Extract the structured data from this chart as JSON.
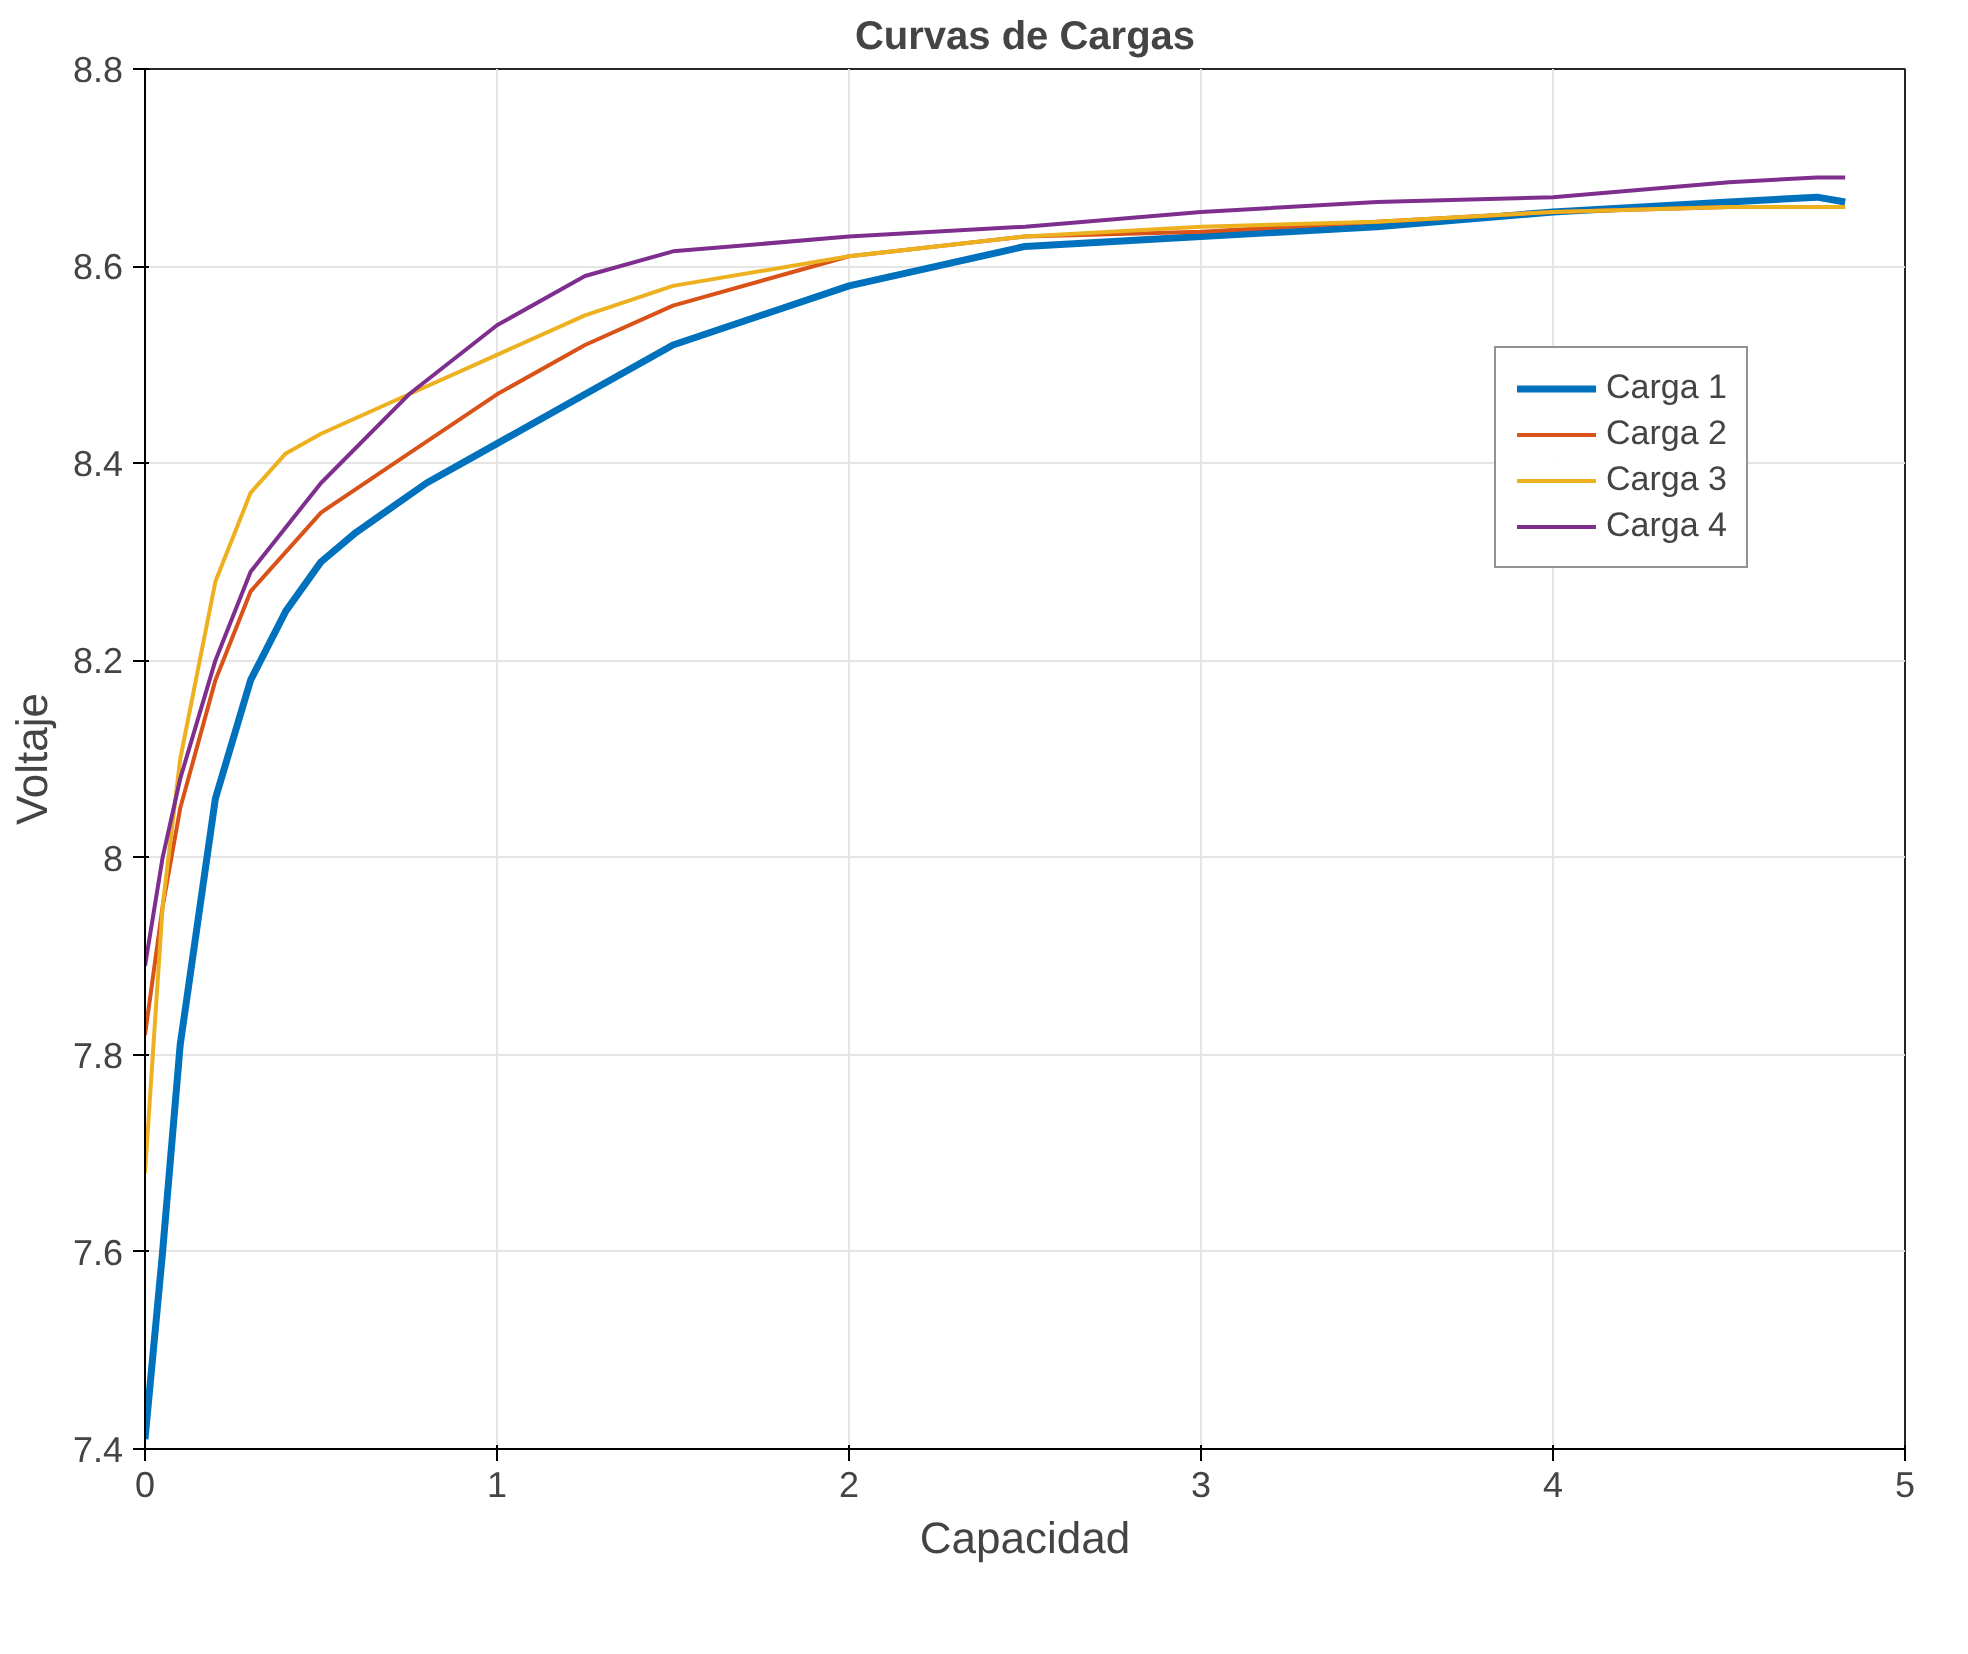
{
  "chart_data": {
    "type": "line",
    "title": "Curvas de Cargas",
    "xlabel": "Capacidad",
    "ylabel": "Voltaje",
    "xlim": [
      0,
      5
    ],
    "ylim": [
      7.4,
      8.8
    ],
    "xticks": [
      0,
      1,
      2,
      3,
      4,
      5
    ],
    "yticks": [
      7.4,
      7.6,
      7.8,
      8,
      8.2,
      8.4,
      8.6,
      8.8
    ],
    "grid": true,
    "legend": "top right",
    "line_style": "solid",
    "series": [
      {
        "name": "Carga 1",
        "color": "#0072bd",
        "x": [
          0,
          0.05,
          0.1,
          0.2,
          0.3,
          0.4,
          0.5,
          0.6,
          0.8,
          1,
          1.25,
          1.5,
          2,
          2.5,
          3,
          3.5,
          4,
          4.5,
          4.75,
          4.83
        ],
        "values": [
          7.41,
          7.6,
          7.81,
          8.06,
          8.18,
          8.25,
          8.3,
          8.33,
          8.38,
          8.42,
          8.47,
          8.52,
          8.58,
          8.62,
          8.63,
          8.64,
          8.655,
          8.665,
          8.67,
          8.665
        ]
      },
      {
        "name": "Carga 2",
        "color": "#d95319",
        "x": [
          0,
          0.05,
          0.1,
          0.2,
          0.3,
          0.5,
          0.75,
          1,
          1.25,
          1.5,
          2,
          2.5,
          3,
          3.5,
          4,
          4.5,
          4.83
        ],
        "values": [
          7.82,
          7.95,
          8.05,
          8.18,
          8.27,
          8.35,
          8.41,
          8.47,
          8.52,
          8.56,
          8.61,
          8.63,
          8.635,
          8.645,
          8.655,
          8.66,
          8.66
        ]
      },
      {
        "name": "Carga 3",
        "color": "#edb120",
        "x": [
          0,
          0.05,
          0.1,
          0.2,
          0.3,
          0.4,
          0.5,
          0.75,
          1,
          1.25,
          1.5,
          2,
          2.5,
          3,
          3.5,
          4,
          4.5,
          4.83
        ],
        "values": [
          7.68,
          7.95,
          8.1,
          8.28,
          8.37,
          8.41,
          8.43,
          8.47,
          8.51,
          8.55,
          8.58,
          8.61,
          8.63,
          8.64,
          8.645,
          8.655,
          8.66,
          8.66
        ]
      },
      {
        "name": "Carga 4",
        "color": "#7e2f8e",
        "x": [
          0,
          0.05,
          0.1,
          0.2,
          0.3,
          0.5,
          0.75,
          1,
          1.25,
          1.5,
          2,
          2.5,
          3,
          3.5,
          4,
          4.5,
          4.75,
          4.83
        ],
        "values": [
          7.89,
          8.0,
          8.08,
          8.2,
          8.29,
          8.38,
          8.47,
          8.54,
          8.59,
          8.615,
          8.63,
          8.64,
          8.655,
          8.665,
          8.67,
          8.685,
          8.69,
          8.69
        ]
      }
    ]
  }
}
